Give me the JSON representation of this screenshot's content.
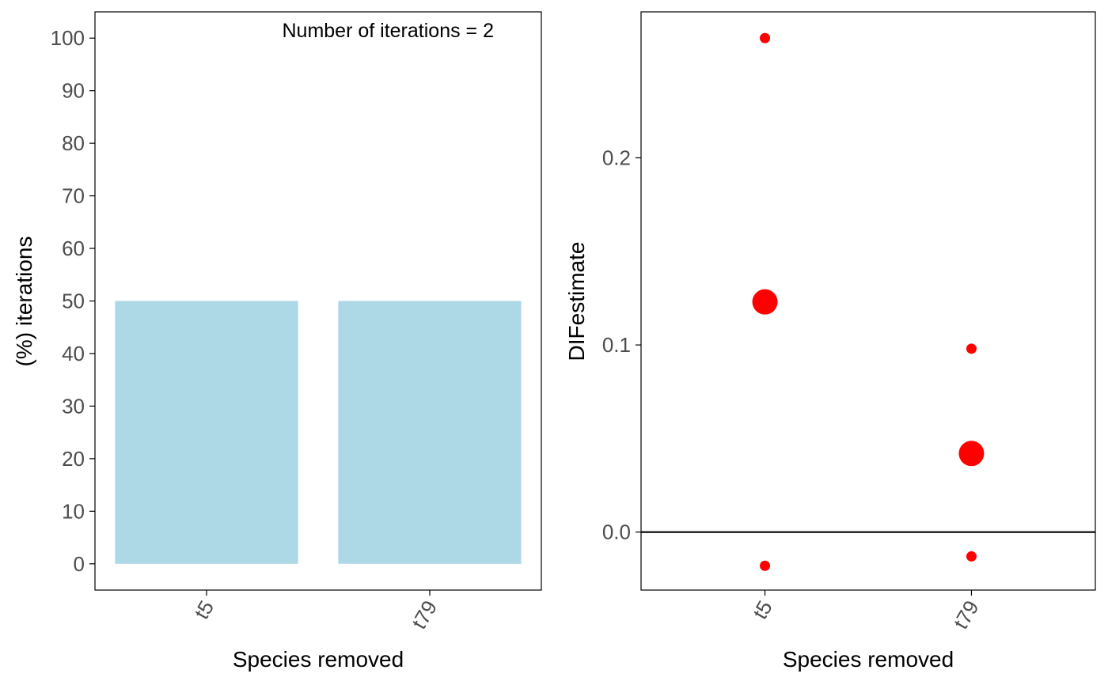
{
  "colors": {
    "bar_fill": "#add8e6",
    "point_fill": "#ff0000",
    "axis": "#000000",
    "tick_text": "#4d4d4d",
    "background": "#ffffff"
  },
  "chart_data": [
    {
      "type": "bar",
      "categories": [
        "t5",
        "t79"
      ],
      "values": [
        50,
        50
      ],
      "xlabel": "Species removed",
      "ylabel": "(%) iterations",
      "ylim": [
        -5,
        105
      ],
      "yticks": [
        0,
        10,
        20,
        30,
        40,
        50,
        60,
        70,
        80,
        90,
        100
      ],
      "annotation": "Number of iterations = 2",
      "annotation_placement": "top-right",
      "grid": false,
      "legend": "none"
    },
    {
      "type": "scatter",
      "categories": [
        "t5",
        "t79"
      ],
      "points": [
        {
          "x": "t5",
          "y": 0.264,
          "size": "small"
        },
        {
          "x": "t5",
          "y": 0.123,
          "size": "large"
        },
        {
          "x": "t5",
          "y": -0.018,
          "size": "small"
        },
        {
          "x": "t79",
          "y": 0.098,
          "size": "small"
        },
        {
          "x": "t79",
          "y": 0.042,
          "size": "large"
        },
        {
          "x": "t79",
          "y": -0.013,
          "size": "small"
        }
      ],
      "reference_line_y": 0,
      "xlabel": "Species removed",
      "ylabel": "DIFestimate",
      "ylim": [
        -0.031,
        0.278
      ],
      "yticks": [
        0.0,
        0.1,
        0.2
      ],
      "ytick_labels": [
        "0.0",
        "0.1",
        "0.2"
      ],
      "grid": false,
      "legend": "none"
    }
  ]
}
